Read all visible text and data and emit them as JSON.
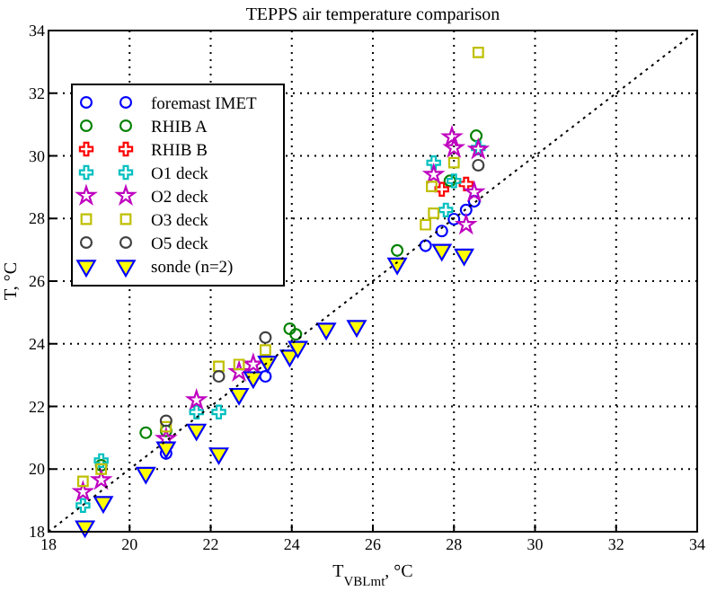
{
  "chart_data": {
    "type": "scatter",
    "title": "TEPPS air temperature comparison",
    "xlabel": "T$_{VBLmt}$, °C",
    "ylabel": "T, °C",
    "xlim": [
      18,
      34
    ],
    "ylim": [
      18,
      34
    ],
    "xticks": [
      18,
      20,
      22,
      24,
      26,
      28,
      30,
      32,
      34
    ],
    "yticks": [
      18,
      20,
      22,
      24,
      26,
      28,
      30,
      32,
      34
    ],
    "grid": true,
    "legend": "top left",
    "series": [
      {
        "name": "foremast IMET",
        "color": "#0000ff",
        "marker": "circle",
        "x": [
          20.9,
          23.35,
          27.3,
          27.7,
          28.0,
          28.3,
          28.5
        ],
        "values": [
          20.5,
          22.96,
          27.13,
          27.6,
          27.98,
          28.27,
          28.55
        ]
      },
      {
        "name": "RHIB A",
        "color": "#008000",
        "marker": "circle",
        "x": [
          19.3,
          20.4,
          20.9,
          23.95,
          24.1,
          26.6,
          27.9,
          28.55
        ],
        "values": [
          20.12,
          21.16,
          21.22,
          24.48,
          24.3,
          26.98,
          29.2,
          30.64
        ]
      },
      {
        "name": "RHIB B",
        "color": "#ff0000",
        "marker": "cross",
        "x": [
          27.7,
          28.3
        ],
        "values": [
          28.93,
          29.1
        ]
      },
      {
        "name": "O1 deck",
        "color": "#00bfbf",
        "marker": "cross",
        "x": [
          18.85,
          19.3,
          21.65,
          22.2,
          27.5,
          27.8,
          28.0,
          28.6
        ],
        "values": [
          18.84,
          20.27,
          21.82,
          21.82,
          29.78,
          28.27,
          29.2,
          30.25
        ]
      },
      {
        "name": "O2 deck",
        "color": "#bf00bf",
        "marker": "star",
        "x": [
          18.85,
          19.3,
          20.9,
          21.65,
          22.7,
          23.05,
          27.5,
          27.95,
          28.0,
          28.3,
          28.5,
          28.6
        ],
        "values": [
          19.27,
          19.65,
          20.97,
          22.2,
          23.1,
          23.34,
          29.4,
          30.6,
          30.25,
          27.8,
          28.84,
          30.2
        ]
      },
      {
        "name": "O3 deck",
        "color": "#bfbf00",
        "marker": "square",
        "x": [
          18.85,
          19.3,
          20.9,
          22.2,
          22.7,
          23.35,
          27.3,
          27.5,
          27.45,
          28.0,
          28.6
        ],
        "values": [
          19.61,
          20.0,
          21.35,
          23.28,
          23.34,
          23.8,
          27.8,
          28.17,
          29.02,
          29.78,
          33.3
        ]
      },
      {
        "name": "O5 deck",
        "color": "#404040",
        "marker": "circle",
        "x": [
          20.9,
          22.2,
          23.35,
          28.6
        ],
        "values": [
          21.54,
          22.96,
          24.2,
          29.7
        ]
      },
      {
        "name": "sonde (n=2)",
        "color": "#ffff00",
        "marker": "triangle",
        "x": [
          18.9,
          19.35,
          20.4,
          20.9,
          21.65,
          22.2,
          22.7,
          23.05,
          23.4,
          23.95,
          24.15,
          24.85,
          25.6,
          26.6,
          27.7,
          28.25
        ],
        "values": [
          18.17,
          18.95,
          19.88,
          20.69,
          21.26,
          20.5,
          22.4,
          22.93,
          23.43,
          23.62,
          23.9,
          24.48,
          24.57,
          26.56,
          27.0,
          26.85
        ]
      },
      {
        "type": "line",
        "color": "#000000",
        "line_style": "dotted",
        "marker": "none",
        "x": [
          18,
          34
        ],
        "values": [
          18,
          34
        ]
      }
    ]
  }
}
